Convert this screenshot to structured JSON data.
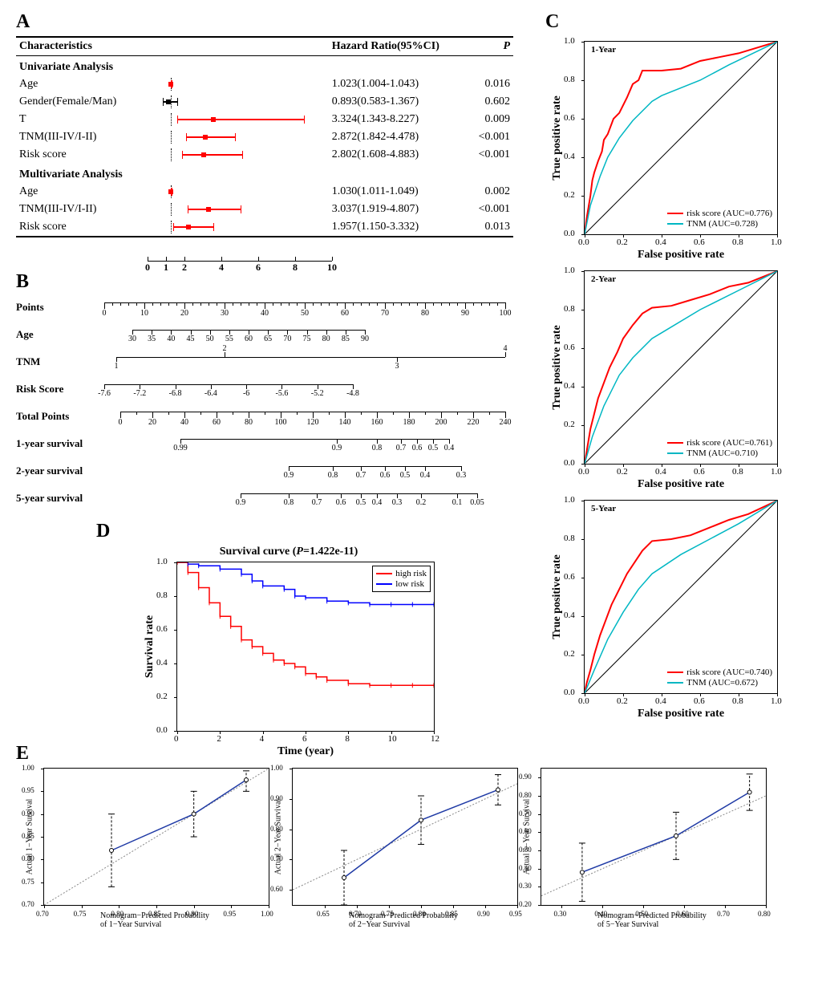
{
  "colors": {
    "risk_score": "#ff0000",
    "tnm": "#00b7c3",
    "high_risk": "#ff0000",
    "low_risk": "#0000ff",
    "forest_ci": "#ff0000",
    "forest_point": "#ff0000",
    "diag": "#000000",
    "calib_line": "#1f3aa5",
    "calib_ref": "#888888"
  },
  "panelA": {
    "label": "A",
    "headers": {
      "char": "Characteristics",
      "hr": "Hazard Ratio(95%CI)",
      "p": "P"
    },
    "section1": "Univariate Analysis",
    "section2": "Multivariate Analysis",
    "x_ticks": [
      0,
      1,
      2,
      4,
      6,
      8,
      10
    ],
    "scale_min": 0,
    "scale_max": 10,
    "ref_line": 1,
    "rows": [
      {
        "section": "uni",
        "char": "Age",
        "lo": 1.004,
        "pt": 1.023,
        "hi": 1.043,
        "hr": "1.023(1.004-1.043)",
        "p": "0.016"
      },
      {
        "section": "uni",
        "char": "Gender(Female/Man)",
        "lo": 0.583,
        "pt": 0.893,
        "hi": 1.367,
        "hr": "0.893(0.583-1.367)",
        "p": "0.602",
        "color": "#000000"
      },
      {
        "section": "uni",
        "char": "T",
        "lo": 1.343,
        "pt": 3.324,
        "hi": 8.227,
        "hr": "3.324(1.343-8.227)",
        "p": "0.009"
      },
      {
        "section": "uni",
        "char": "TNM(III-IV/I-II)",
        "lo": 1.842,
        "pt": 2.872,
        "hi": 4.478,
        "hr": "2.872(1.842-4.478)",
        "p": "<0.001"
      },
      {
        "section": "uni",
        "char": "Risk score",
        "lo": 1.608,
        "pt": 2.802,
        "hi": 4.883,
        "hr": "2.802(1.608-4.883)",
        "p": "<0.001"
      },
      {
        "section": "multi",
        "char": "Age",
        "lo": 1.011,
        "pt": 1.03,
        "hi": 1.049,
        "hr": "1.030(1.011-1.049)",
        "p": "0.002"
      },
      {
        "section": "multi",
        "char": "TNM(III-IV/I-II)",
        "lo": 1.919,
        "pt": 3.037,
        "hi": 4.807,
        "hr": "3.037(1.919-4.807)",
        "p": "<0.001"
      },
      {
        "section": "multi",
        "char": "Risk score",
        "lo": 1.15,
        "pt": 1.957,
        "hi": 3.332,
        "hr": "1.957(1.150-3.332)",
        "p": "0.013"
      }
    ]
  },
  "panelB": {
    "label": "B",
    "scales": [
      {
        "label": "Points",
        "left_pct": 0,
        "right_pct": 100,
        "major": [
          0,
          10,
          20,
          30,
          40,
          50,
          60,
          70,
          80,
          90,
          100
        ],
        "tick_h": 8,
        "minor_between": 4
      },
      {
        "label": "Age",
        "left_pct": 7,
        "right_pct": 65,
        "major": [
          30,
          35,
          40,
          45,
          50,
          55,
          60,
          65,
          70,
          75,
          80,
          85,
          90
        ],
        "tick_h": 6
      },
      {
        "label": "TNM",
        "left_pct": 3,
        "right_pct": 100,
        "major": [
          1,
          2,
          3,
          4
        ],
        "positions": [
          3,
          30,
          73,
          100
        ],
        "tick_h": 6,
        "alt": true
      },
      {
        "label": "Risk Score",
        "left_pct": 0,
        "right_pct": 62,
        "major": [
          -7.6,
          -7.2,
          -6.8,
          -6.4,
          -6.0,
          -5.6,
          -5.2,
          -4.8
        ],
        "tick_h": 6
      },
      {
        "label": "Total Points",
        "left_pct": 4,
        "right_pct": 100,
        "major": [
          0,
          20,
          40,
          60,
          80,
          100,
          120,
          140,
          160,
          180,
          200,
          220,
          240
        ],
        "tick_h": 8,
        "minor_between": 1
      },
      {
        "label": "1-year survival",
        "left_pct": 19,
        "right_pct": 86,
        "major": [
          0.99,
          0.9,
          0.8,
          0.7,
          0.6,
          0.5,
          0.4
        ],
        "positions": [
          19,
          58,
          68,
          74,
          78,
          82,
          86
        ],
        "tick_h": 6
      },
      {
        "label": "2-year survival",
        "left_pct": 46,
        "right_pct": 89,
        "major": [
          0.9,
          0.8,
          0.7,
          0.6,
          0.5,
          0.4,
          0.3
        ],
        "positions": [
          46,
          57,
          64,
          70,
          75,
          80,
          89
        ],
        "tick_h": 6
      },
      {
        "label": "5-year survival",
        "left_pct": 34,
        "right_pct": 93,
        "major": [
          0.9,
          0.8,
          0.7,
          0.6,
          0.5,
          0.4,
          0.3,
          0.2,
          0.1,
          0.05
        ],
        "positions": [
          34,
          46,
          53,
          59,
          64,
          68,
          73,
          79,
          88,
          93
        ],
        "tick_h": 6
      }
    ]
  },
  "panelC": {
    "label": "C",
    "xlabel": "False positive rate",
    "ylabel": "True positive rate",
    "ticks": [
      0.0,
      0.2,
      0.4,
      0.6,
      0.8,
      1.0
    ],
    "plots": [
      {
        "title": "1-Year",
        "legend": [
          {
            "label": "risk score (AUC=0.776)",
            "color_key": "risk_score"
          },
          {
            "label": "TNM (AUC=0.728)",
            "color_key": "tnm"
          }
        ],
        "series": {
          "risk_score": [
            [
              0,
              0
            ],
            [
              0.01,
              0.08
            ],
            [
              0.02,
              0.14
            ],
            [
              0.03,
              0.2
            ],
            [
              0.04,
              0.28
            ],
            [
              0.05,
              0.32
            ],
            [
              0.07,
              0.38
            ],
            [
              0.09,
              0.43
            ],
            [
              0.1,
              0.49
            ],
            [
              0.12,
              0.52
            ],
            [
              0.15,
              0.6
            ],
            [
              0.18,
              0.63
            ],
            [
              0.22,
              0.71
            ],
            [
              0.25,
              0.78
            ],
            [
              0.28,
              0.8
            ],
            [
              0.3,
              0.85
            ],
            [
              0.4,
              0.85
            ],
            [
              0.5,
              0.86
            ],
            [
              0.6,
              0.9
            ],
            [
              0.7,
              0.92
            ],
            [
              0.8,
              0.94
            ],
            [
              0.9,
              0.97
            ],
            [
              1,
              1
            ]
          ],
          "tnm": [
            [
              0,
              0
            ],
            [
              0.03,
              0.15
            ],
            [
              0.08,
              0.3
            ],
            [
              0.12,
              0.4
            ],
            [
              0.18,
              0.5
            ],
            [
              0.25,
              0.59
            ],
            [
              0.35,
              0.69
            ],
            [
              0.4,
              0.72
            ],
            [
              0.6,
              0.8
            ],
            [
              0.75,
              0.88
            ],
            [
              1,
              1
            ]
          ]
        }
      },
      {
        "title": "2-Year",
        "legend": [
          {
            "label": "risk score (AUC=0.761)",
            "color_key": "risk_score"
          },
          {
            "label": "TNM (AUC=0.710)",
            "color_key": "tnm"
          }
        ],
        "series": {
          "risk_score": [
            [
              0,
              0
            ],
            [
              0.01,
              0.06
            ],
            [
              0.02,
              0.12
            ],
            [
              0.03,
              0.18
            ],
            [
              0.05,
              0.26
            ],
            [
              0.07,
              0.34
            ],
            [
              0.1,
              0.42
            ],
            [
              0.13,
              0.5
            ],
            [
              0.17,
              0.58
            ],
            [
              0.2,
              0.65
            ],
            [
              0.25,
              0.72
            ],
            [
              0.3,
              0.78
            ],
            [
              0.35,
              0.81
            ],
            [
              0.45,
              0.82
            ],
            [
              0.55,
              0.85
            ],
            [
              0.65,
              0.88
            ],
            [
              0.75,
              0.92
            ],
            [
              0.85,
              0.94
            ],
            [
              1,
              1
            ]
          ],
          "tnm": [
            [
              0,
              0
            ],
            [
              0.04,
              0.14
            ],
            [
              0.1,
              0.3
            ],
            [
              0.18,
              0.46
            ],
            [
              0.25,
              0.55
            ],
            [
              0.35,
              0.65
            ],
            [
              0.4,
              0.68
            ],
            [
              0.6,
              0.8
            ],
            [
              0.8,
              0.9
            ],
            [
              1,
              1
            ]
          ]
        }
      },
      {
        "title": "5-Year",
        "legend": [
          {
            "label": "risk score (AUC=0.740)",
            "color_key": "risk_score"
          },
          {
            "label": "TNM (AUC=0.672)",
            "color_key": "tnm"
          }
        ],
        "series": {
          "risk_score": [
            [
              0,
              0
            ],
            [
              0.01,
              0.05
            ],
            [
              0.03,
              0.12
            ],
            [
              0.05,
              0.2
            ],
            [
              0.08,
              0.3
            ],
            [
              0.11,
              0.38
            ],
            [
              0.14,
              0.46
            ],
            [
              0.18,
              0.54
            ],
            [
              0.22,
              0.62
            ],
            [
              0.26,
              0.68
            ],
            [
              0.3,
              0.74
            ],
            [
              0.35,
              0.79
            ],
            [
              0.45,
              0.8
            ],
            [
              0.55,
              0.82
            ],
            [
              0.65,
              0.86
            ],
            [
              0.75,
              0.9
            ],
            [
              0.85,
              0.93
            ],
            [
              1,
              1
            ]
          ],
          "tnm": [
            [
              0,
              0
            ],
            [
              0.05,
              0.12
            ],
            [
              0.12,
              0.28
            ],
            [
              0.2,
              0.42
            ],
            [
              0.28,
              0.54
            ],
            [
              0.35,
              0.62
            ],
            [
              0.5,
              0.72
            ],
            [
              0.65,
              0.8
            ],
            [
              0.8,
              0.88
            ],
            [
              1,
              1
            ]
          ]
        }
      }
    ]
  },
  "panelD": {
    "label": "D",
    "title": "Survival curve (P=1.422e-11)",
    "title_prefix": "Survival curve (",
    "title_p_italic": "P",
    "title_suffix": "=1.422e-11)",
    "xlabel": "Time (year)",
    "ylabel": "Survival rate",
    "x_ticks": [
      0,
      2,
      4,
      6,
      8,
      10,
      12
    ],
    "y_ticks": [
      0.0,
      0.2,
      0.4,
      0.6,
      0.8,
      1.0
    ],
    "legend": [
      {
        "label": "high risk",
        "color_key": "high_risk"
      },
      {
        "label": "low risk",
        "color_key": "low_risk"
      }
    ],
    "series": {
      "high_risk": [
        [
          0,
          1.0
        ],
        [
          0.5,
          0.94
        ],
        [
          1,
          0.85
        ],
        [
          1.5,
          0.76
        ],
        [
          2,
          0.68
        ],
        [
          2.5,
          0.62
        ],
        [
          3,
          0.54
        ],
        [
          3.5,
          0.5
        ],
        [
          4,
          0.46
        ],
        [
          4.5,
          0.42
        ],
        [
          5,
          0.4
        ],
        [
          5.5,
          0.38
        ],
        [
          6,
          0.34
        ],
        [
          6.5,
          0.32
        ],
        [
          7,
          0.3
        ],
        [
          8,
          0.28
        ],
        [
          9,
          0.27
        ],
        [
          10,
          0.27
        ],
        [
          11,
          0.27
        ],
        [
          12,
          0.27
        ]
      ],
      "low_risk": [
        [
          0,
          1.0
        ],
        [
          0.5,
          0.99
        ],
        [
          1,
          0.98
        ],
        [
          2,
          0.96
        ],
        [
          3,
          0.93
        ],
        [
          3.5,
          0.89
        ],
        [
          4,
          0.86
        ],
        [
          5,
          0.84
        ],
        [
          5.5,
          0.8
        ],
        [
          6,
          0.79
        ],
        [
          7,
          0.77
        ],
        [
          8,
          0.76
        ],
        [
          9,
          0.75
        ],
        [
          10,
          0.75
        ],
        [
          11,
          0.75
        ],
        [
          12,
          0.75
        ]
      ]
    }
  },
  "panelE": {
    "label": "E",
    "plots": [
      {
        "xlabel": "Nomogram−Predicted Probability of 1−Year Survival",
        "ylabel": "Actual 1−Year Survival",
        "x_range": [
          0.7,
          1.0
        ],
        "x_ticks": [
          0.7,
          0.75,
          0.8,
          0.85,
          0.9,
          0.95,
          1.0
        ],
        "y_range": [
          0.7,
          1.0
        ],
        "y_ticks": [
          0.7,
          0.75,
          0.8,
          0.85,
          0.9,
          0.95,
          1.0
        ],
        "points": [
          {
            "x": 0.79,
            "y": 0.82,
            "err_lo": 0.74,
            "err_hi": 0.9
          },
          {
            "x": 0.9,
            "y": 0.9,
            "err_lo": 0.85,
            "err_hi": 0.95
          },
          {
            "x": 0.97,
            "y": 0.975,
            "err_lo": 0.95,
            "err_hi": 0.995
          }
        ]
      },
      {
        "xlabel": "Nomogram−Predicted Probability of 2−Year Survival",
        "ylabel": "Actual 2−Year Survival",
        "x_range": [
          0.6,
          0.95
        ],
        "x_ticks": [
          0.65,
          0.7,
          0.75,
          0.8,
          0.85,
          0.9,
          0.95
        ],
        "y_range": [
          0.55,
          1.0
        ],
        "y_ticks": [
          0.6,
          0.7,
          0.8,
          0.9,
          1.0
        ],
        "points": [
          {
            "x": 0.68,
            "y": 0.64,
            "err_lo": 0.55,
            "err_hi": 0.73
          },
          {
            "x": 0.8,
            "y": 0.83,
            "err_lo": 0.75,
            "err_hi": 0.91
          },
          {
            "x": 0.92,
            "y": 0.93,
            "err_lo": 0.88,
            "err_hi": 0.98
          }
        ]
      },
      {
        "xlabel": "Nomogram−Predicted Probability of 5−Year Survival",
        "ylabel": "Actual 5−Year Survival",
        "x_range": [
          0.25,
          0.8
        ],
        "x_ticks": [
          0.3,
          0.4,
          0.5,
          0.6,
          0.7,
          0.8
        ],
        "y_range": [
          0.2,
          0.95
        ],
        "y_ticks": [
          0.2,
          0.3,
          0.4,
          0.5,
          0.6,
          0.7,
          0.8,
          0.9
        ],
        "points": [
          {
            "x": 0.35,
            "y": 0.38,
            "err_lo": 0.22,
            "err_hi": 0.54
          },
          {
            "x": 0.58,
            "y": 0.58,
            "err_lo": 0.45,
            "err_hi": 0.71
          },
          {
            "x": 0.76,
            "y": 0.82,
            "err_lo": 0.72,
            "err_hi": 0.92
          }
        ]
      }
    ]
  }
}
